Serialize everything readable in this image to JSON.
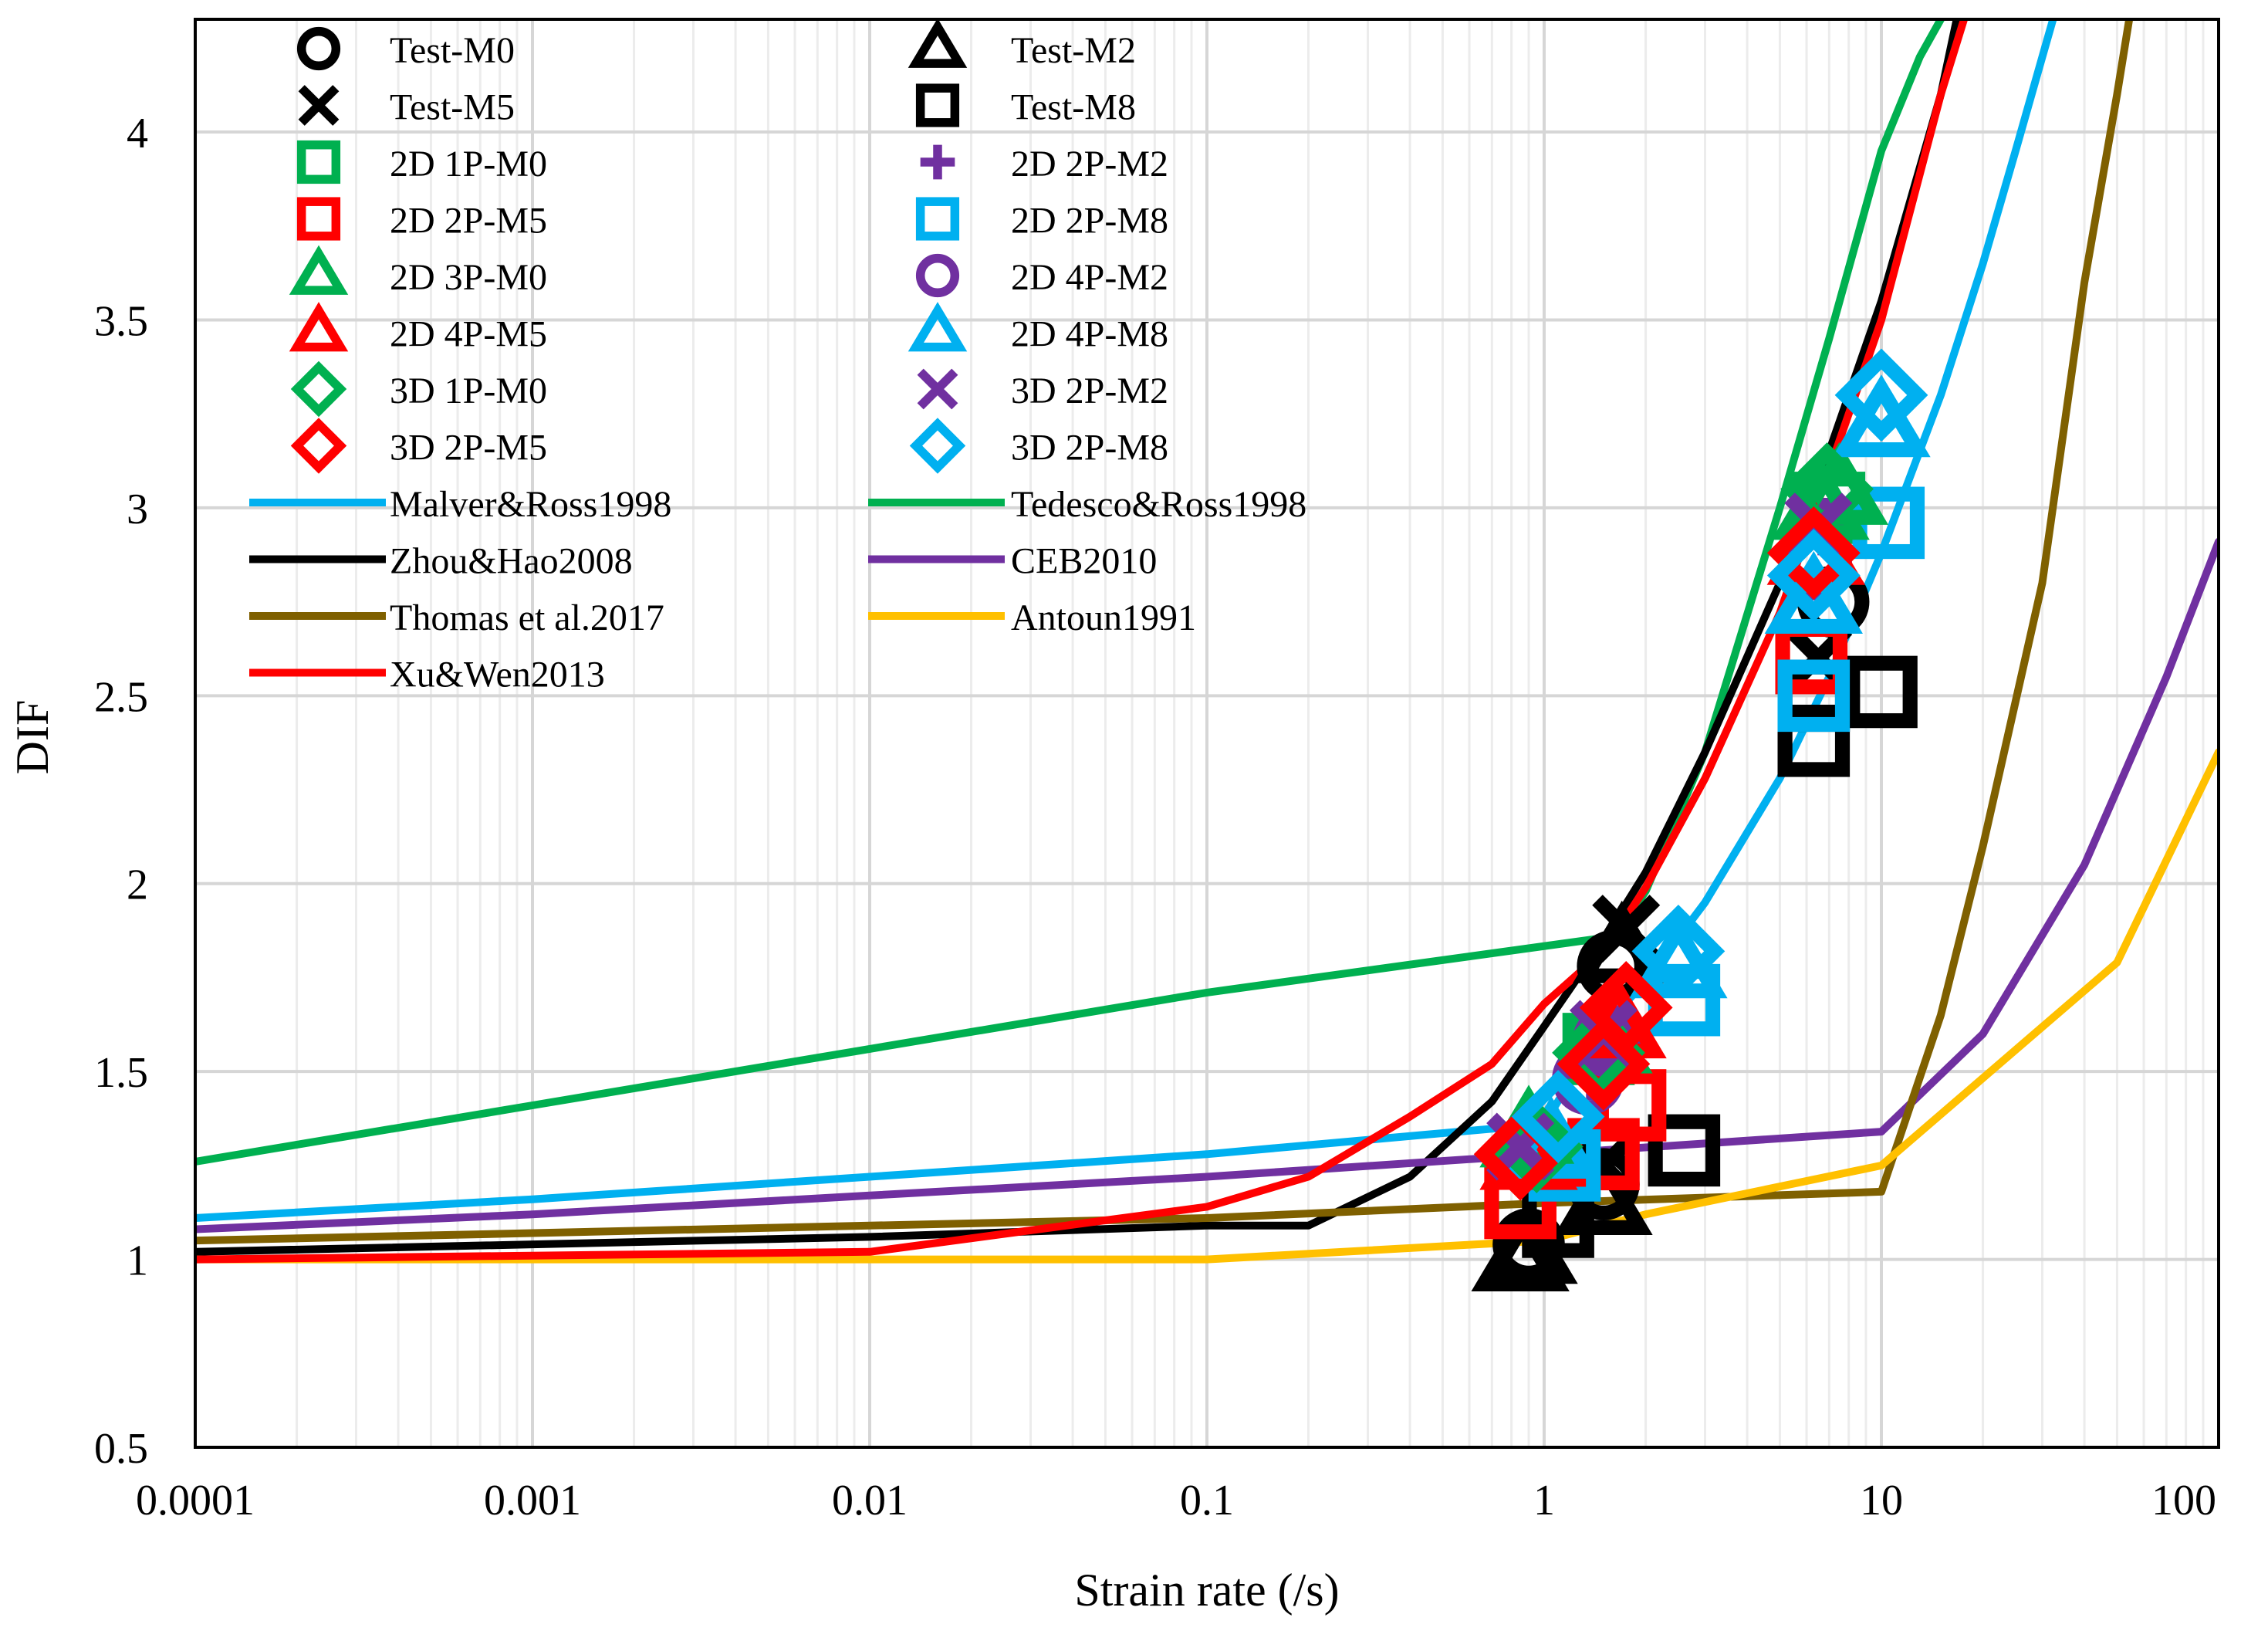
{
  "chart_data": {
    "type": "scatter",
    "xlabel": "Strain rate (/s)",
    "ylabel": "DIF",
    "xscale": "log",
    "xlim": [
      0.0001,
      100
    ],
    "ylim": [
      0.5,
      4.3
    ],
    "grid": true,
    "legend_position": "top-left",
    "x_tick_labels": [
      "0.0001",
      "0.001",
      "0.01",
      "0.1",
      "1",
      "10",
      "100"
    ],
    "x_ticks": [
      0.0001,
      0.001,
      0.01,
      0.1,
      1,
      10,
      100
    ],
    "y_tick_labels": [
      "0.5",
      "1",
      "1.5",
      "2",
      "2.5",
      "3",
      "3.5",
      "4"
    ],
    "y_ticks": [
      0.5,
      1,
      1.5,
      2,
      2.5,
      3,
      3.5,
      4
    ],
    "series": [
      {
        "name": "Test-M0",
        "kind": "marker",
        "marker": "circle",
        "color": "#000000",
        "x": [
          0.9,
          1.5,
          1.6,
          7.2
        ],
        "y": [
          1.04,
          1.2,
          1.78,
          2.75
        ]
      },
      {
        "name": "Test-M2",
        "kind": "marker",
        "marker": "triangle",
        "color": "#000000",
        "x": [
          0.85,
          0.9,
          1.5,
          1.7
        ],
        "y": [
          1.0,
          1.02,
          1.15,
          1.82
        ]
      },
      {
        "name": "Test-M5",
        "kind": "marker",
        "marker": "x",
        "color": "#000000",
        "x": [
          1.5,
          1.75,
          6.5
        ],
        "y": [
          1.25,
          1.88,
          2.6
        ]
      },
      {
        "name": "Test-M8",
        "kind": "marker",
        "marker": "square",
        "color": "#000000",
        "x": [
          1.1,
          2.6,
          6.3,
          6.3,
          10.0
        ],
        "y": [
          1.1,
          1.29,
          2.38,
          2.5,
          2.51
        ]
      },
      {
        "name": "2D 1P-M0",
        "kind": "marker",
        "marker": "square",
        "color": "#00b050",
        "x": [
          1.45,
          7.0
        ],
        "y": [
          1.56,
          3.0
        ]
      },
      {
        "name": "2D 2P-M2",
        "kind": "marker",
        "marker": "plus",
        "color": "#7030a0",
        "x": [
          1.4,
          1.6,
          6.8
        ],
        "y": [
          1.5,
          1.6,
          2.95
        ]
      },
      {
        "name": "2D 2P-M5",
        "kind": "marker",
        "marker": "square",
        "color": "#ff0000",
        "x": [
          0.85,
          1.5,
          1.8,
          6.2
        ],
        "y": [
          1.15,
          1.28,
          1.41,
          2.6
        ]
      },
      {
        "name": "2D 2P-M8",
        "kind": "marker",
        "marker": "square",
        "color": "#00b0f0",
        "x": [
          1.15,
          2.6,
          6.3,
          10.5
        ],
        "y": [
          1.25,
          1.69,
          2.5,
          2.96
        ]
      },
      {
        "name": "2D 3P-M0",
        "kind": "marker",
        "marker": "triangle",
        "color": "#00b050",
        "x": [
          0.9,
          1.5,
          6.6,
          7.5
        ],
        "y": [
          1.33,
          1.58,
          3.0,
          3.04
        ]
      },
      {
        "name": "2D 4P-M2",
        "kind": "marker",
        "marker": "circle",
        "color": "#7030a0",
        "x": [
          1.35,
          1.55,
          6.4
        ],
        "y": [
          1.48,
          1.58,
          2.85
        ]
      },
      {
        "name": "2D 4P-M5",
        "kind": "marker",
        "marker": "triangle",
        "color": "#ff0000",
        "x": [
          0.9,
          1.65,
          6.4
        ],
        "y": [
          1.27,
          1.62,
          2.88
        ]
      },
      {
        "name": "2D 4P-M8",
        "kind": "marker",
        "marker": "triangle",
        "color": "#00b0f0",
        "x": [
          1.05,
          2.5,
          6.3,
          10.0
        ],
        "y": [
          1.3,
          1.78,
          2.75,
          3.22
        ]
      },
      {
        "name": "3D 1P-M0",
        "kind": "marker",
        "marker": "diamond",
        "color": "#00b050",
        "x": [
          0.95,
          1.45,
          6.9
        ],
        "y": [
          1.3,
          1.55,
          3.05
        ]
      },
      {
        "name": "3D 2P-M2",
        "kind": "marker",
        "marker": "x",
        "color": "#7030a0",
        "x": [
          0.85,
          1.5,
          6.5
        ],
        "y": [
          1.3,
          1.6,
          2.95
        ]
      },
      {
        "name": "3D 2P-M5",
        "kind": "marker",
        "marker": "diamond",
        "color": "#ff0000",
        "x": [
          0.85,
          1.5,
          1.75,
          6.3
        ],
        "y": [
          1.28,
          1.52,
          1.67,
          2.88
        ]
      },
      {
        "name": "3D 2P-M8",
        "kind": "marker",
        "marker": "diamond",
        "color": "#00b0f0",
        "x": [
          1.1,
          2.5,
          6.3,
          10.0
        ],
        "y": [
          1.38,
          1.82,
          2.82,
          3.3
        ]
      },
      {
        "name": "Malver&Ross1998",
        "kind": "line",
        "color": "#00b0f0",
        "x": [
          0.0001,
          0.001,
          0.01,
          0.1,
          1,
          1.5,
          2,
          3,
          5,
          7,
          10,
          15,
          20,
          25,
          30,
          33
        ],
        "y": [
          1.11,
          1.16,
          1.22,
          1.28,
          1.36,
          1.62,
          1.74,
          1.95,
          2.28,
          2.55,
          2.88,
          3.3,
          3.65,
          3.95,
          4.2,
          4.33
        ]
      },
      {
        "name": "Tedesco&Ross1998",
        "kind": "line",
        "color": "#00b050",
        "x": [
          0.0001,
          0.001,
          0.01,
          0.1,
          1.63,
          2,
          3,
          5,
          7,
          10,
          13,
          15
        ],
        "y": [
          1.26,
          1.41,
          1.56,
          1.71,
          1.86,
          1.98,
          2.35,
          3.0,
          3.45,
          3.95,
          4.2,
          4.3
        ]
      },
      {
        "name": "Zhou&Hao2008",
        "kind": "line",
        "color": "#000000",
        "x": [
          0.0001,
          0.01,
          0.1,
          0.2,
          0.4,
          0.7,
          1,
          1.5,
          2,
          3,
          5,
          7,
          10,
          15,
          17
        ],
        "y": [
          1.02,
          1.06,
          1.09,
          1.09,
          1.22,
          1.42,
          1.62,
          1.85,
          2.03,
          2.35,
          2.8,
          3.15,
          3.55,
          4.1,
          4.33
        ]
      },
      {
        "name": "CEB2010",
        "kind": "line",
        "color": "#7030a0",
        "x": [
          0.0001,
          0.001,
          0.01,
          0.1,
          1,
          10,
          20,
          40,
          70,
          100
        ],
        "y": [
          1.08,
          1.12,
          1.17,
          1.22,
          1.28,
          1.34,
          1.6,
          2.05,
          2.55,
          2.91
        ]
      },
      {
        "name": "Thomas et al.2017",
        "kind": "line",
        "color": "#7f6000",
        "x": [
          0.0001,
          0.001,
          0.01,
          0.1,
          1,
          10,
          15,
          20,
          30,
          40,
          50,
          55
        ],
        "y": [
          1.05,
          1.07,
          1.09,
          1.11,
          1.15,
          1.18,
          1.65,
          2.1,
          2.8,
          3.6,
          4.1,
          4.33
        ]
      },
      {
        "name": "Antoun1991",
        "kind": "line",
        "color": "#ffc000",
        "x": [
          0.0001,
          0.01,
          0.1,
          1,
          2,
          10,
          50,
          100
        ],
        "y": [
          1.0,
          1.0,
          1.0,
          1.05,
          1.12,
          1.25,
          1.79,
          2.35
        ]
      },
      {
        "name": "Xu&Wen2013",
        "kind": "line",
        "color": "#ff0000",
        "x": [
          0.0001,
          0.01,
          0.1,
          0.2,
          0.4,
          0.7,
          1,
          1.5,
          2,
          3,
          5,
          7,
          10,
          15,
          18
        ],
        "y": [
          1.0,
          1.02,
          1.14,
          1.22,
          1.38,
          1.52,
          1.68,
          1.82,
          1.99,
          2.28,
          2.72,
          3.1,
          3.5,
          4.1,
          4.33
        ]
      }
    ]
  }
}
